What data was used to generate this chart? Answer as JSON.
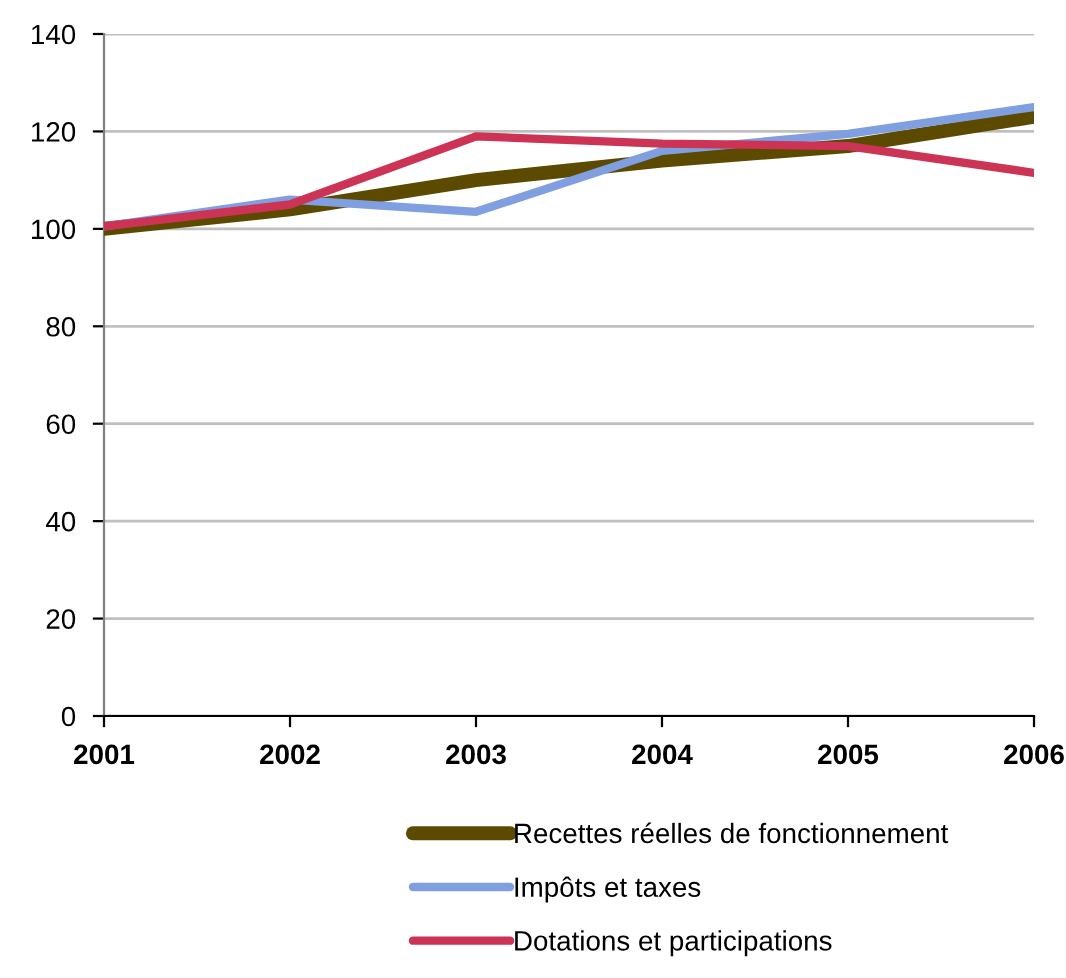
{
  "chart_data": {
    "type": "line",
    "categories": [
      "2001",
      "2002",
      "2003",
      "2004",
      "2005",
      "2006"
    ],
    "series": [
      {
        "name": "Recettes réelles de fonctionnement",
        "color": "#5c4a00",
        "values": [
          100,
          104,
          110,
          114,
          117,
          123
        ]
      },
      {
        "name": "Impôts et taxes",
        "color": "#7f9fe0",
        "values": [
          100.5,
          106,
          103.5,
          116,
          119.5,
          125
        ]
      },
      {
        "name": "Dotations et participations",
        "color": "#cc3355",
        "values": [
          100.5,
          105,
          119,
          117.5,
          117,
          111.5
        ]
      }
    ],
    "ylim": [
      0,
      140
    ],
    "yticks": [
      0,
      20,
      40,
      60,
      80,
      100,
      120,
      140
    ],
    "grid": "y",
    "legend": "bottom",
    "marker": "none",
    "line_style": "solid"
  }
}
